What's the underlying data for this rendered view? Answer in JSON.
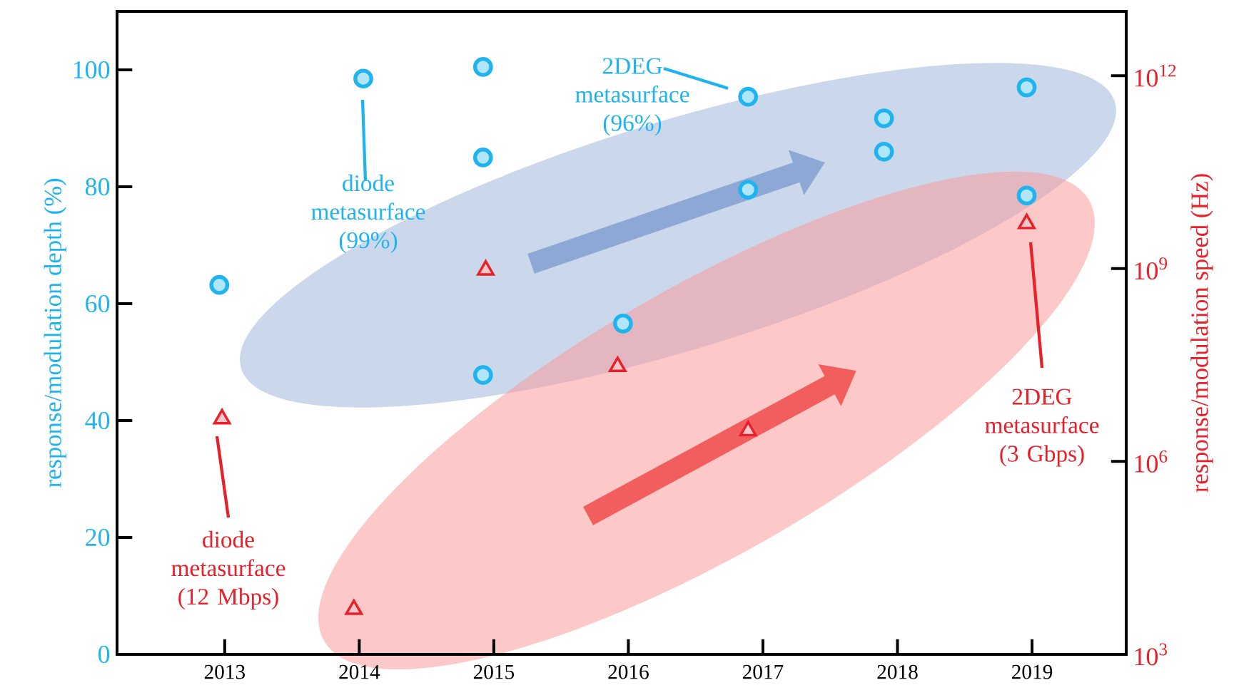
{
  "chart_data": {
    "type": "scatter",
    "xlim": [
      2012.2,
      2019.7
    ],
    "xticks": [
      2013,
      2014,
      2015,
      2016,
      2017,
      2018,
      2019
    ],
    "ylim": [
      0,
      110
    ],
    "yticks": [
      0,
      20,
      40,
      60,
      80,
      100
    ],
    "y2lim": [
      1000,
      10000000000000
    ],
    "y2ticks": [
      {
        "value": 1000,
        "label": "10$^{3}$"
      },
      {
        "value": 1000000,
        "label": "10$^{6}$"
      },
      {
        "value": 1000000000,
        "label": "10$^{9}$"
      },
      {
        "value": 1000000000000,
        "label": "10$^{12}$"
      }
    ],
    "log": "y2",
    "ylabel": "response/modulation depth (%)",
    "y2label": "response/modulation speed (Hz)",
    "series": [
      {
        "color": "#1fb4f0",
        "marker": "circle",
        "x": [
          2012.96,
          2014.03,
          2014.92,
          2014.92,
          2014.92,
          2015.96,
          2016.89,
          2016.89,
          2017.9,
          2017.9,
          2018.96,
          2018.96
        ],
        "values": [
          63.2,
          98.5,
          100.5,
          85,
          47.8,
          56.6,
          95.4,
          79.5,
          91.7,
          86,
          97,
          78.5
        ]
      },
      {
        "color": "#e8202a",
        "marker": "triangle",
        "axis": "y2",
        "x": [
          2012.98,
          2013.96,
          2014.94,
          2015.92,
          2016.89,
          2018.96
        ],
        "values": [
          4600000,
          5000,
          950000000,
          30000000,
          3000000,
          5000000000
        ]
      }
    ],
    "annotations": [
      "diode metasurface (99%)",
      "2DEG metasurface (96%)",
      "diode metasurface (12 Mbps)",
      "2DEG metasurface (3 Gbps)"
    ]
  }
}
